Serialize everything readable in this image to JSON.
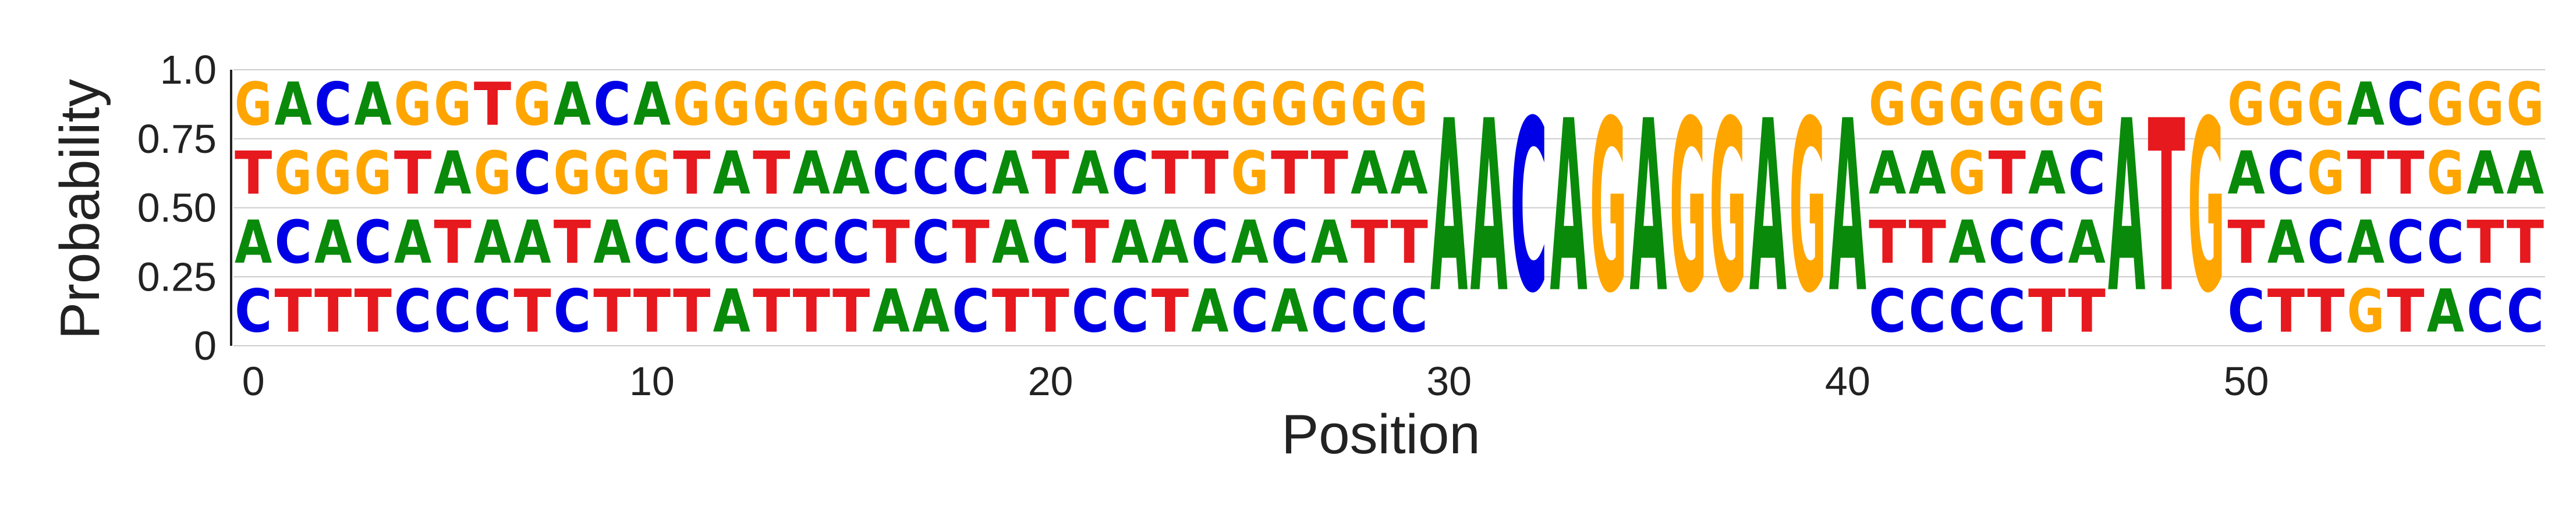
{
  "chart_data": {
    "type": "sequence-logo",
    "xlabel": "Position",
    "ylabel": "Probability",
    "ylim": [
      0,
      1
    ],
    "xlim": [
      -0.5,
      57.5
    ],
    "x_ticks": [
      0,
      10,
      20,
      30,
      40,
      50
    ],
    "y_ticks": [
      {
        "value": 0,
        "label": "0"
      },
      {
        "value": 0.25,
        "label": "0.25"
      },
      {
        "value": 0.5,
        "label": "0.50"
      },
      {
        "value": 0.75,
        "label": "0.75"
      },
      {
        "value": 1,
        "label": "1.0"
      }
    ],
    "grid": "horizontal",
    "letter_colors": {
      "A": "#0a8a0a",
      "C": "#0000e6",
      "G": "#ffa500",
      "T": "#e6191e"
    },
    "stacks_bottom_to_top": [
      "CATG",
      "TCGA",
      "TAGC",
      "TCGA",
      "CATG",
      "CTAG",
      "CAGT",
      "TACG",
      "CTGA",
      "TAGC",
      "TCGA",
      "TCTG",
      "ACAG",
      "TCTG",
      "TCAG",
      "TCAG",
      "ATCG",
      "ACCG",
      "CTCG",
      "TAAG",
      "TCTG",
      "CTAG",
      "CACG",
      "TATG",
      "ACTG",
      "CAGG",
      "ACTG",
      "CATG",
      "CTAG",
      "CTAG",
      "A",
      "A",
      "C",
      "A",
      "G",
      "A",
      "G",
      "G",
      "A",
      "G",
      "A",
      "CTAG",
      "CTAG",
      "CAGG",
      "CCTG",
      "TCAG",
      "TACG",
      "A",
      "T",
      "G",
      "CTAG",
      "TACG",
      "TCGG",
      "GATA",
      "TCTC",
      "ACGG",
      "CTAG",
      "CTAG"
    ],
    "single_letter_positions": [
      30,
      31,
      32,
      33,
      34,
      35,
      36,
      37,
      38,
      39,
      40,
      47,
      48,
      49
    ]
  }
}
